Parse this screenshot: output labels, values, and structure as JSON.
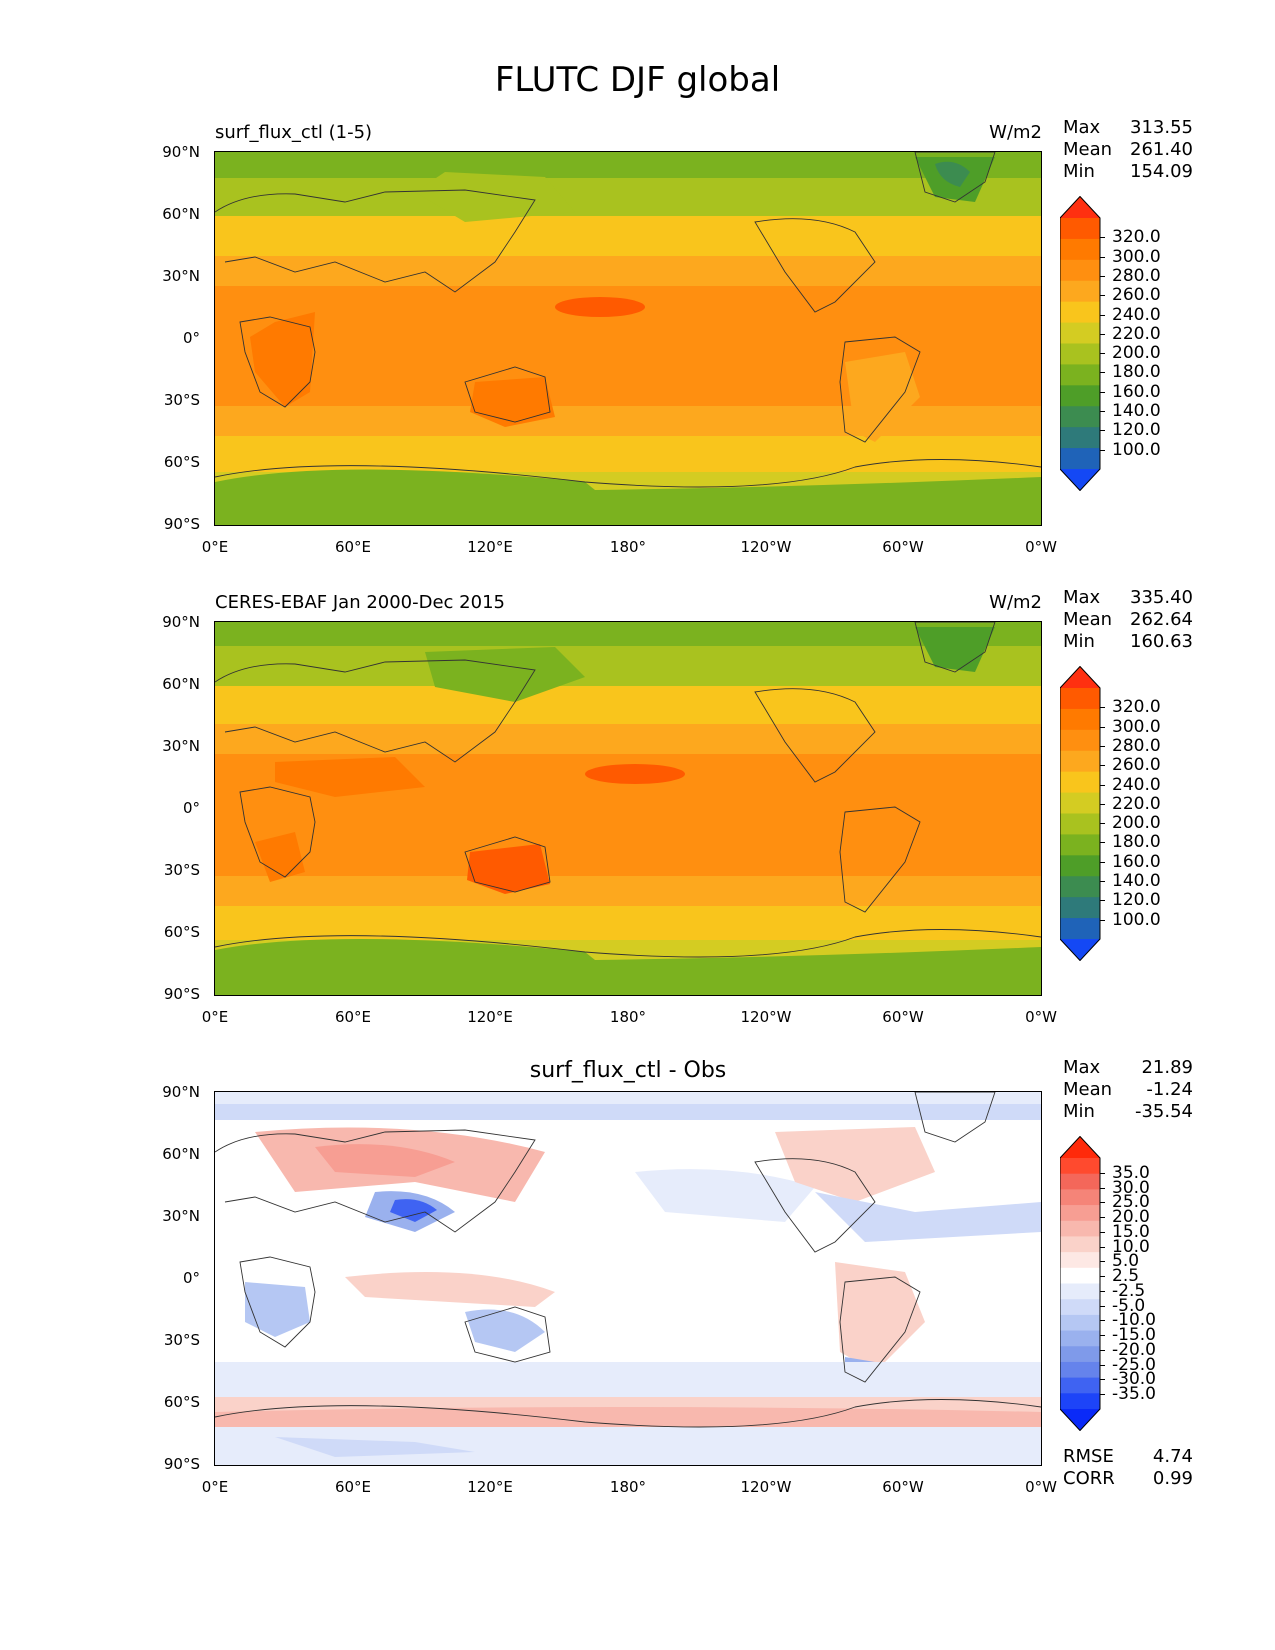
{
  "title": "FLUTC DJF global",
  "axes": {
    "lat_ticks": [
      "90°N",
      "60°N",
      "30°N",
      "0°",
      "30°S",
      "60°S",
      "90°S"
    ],
    "lon_ticks": [
      "0°E",
      "60°E",
      "120°E",
      "180°",
      "120°W",
      "60°W",
      "0°W"
    ]
  },
  "panels": [
    {
      "title_left": "surf_flux_ctl (1-5)",
      "title_right": "W/m2",
      "stats": [
        {
          "k": "Max",
          "v": "313.55"
        },
        {
          "k": "Mean",
          "v": "261.40"
        },
        {
          "k": "Min",
          "v": "154.09"
        }
      ]
    },
    {
      "title_left": "CERES-EBAF Jan 2000-Dec 2015",
      "title_right": "W/m2",
      "stats": [
        {
          "k": "Max",
          "v": "335.40"
        },
        {
          "k": "Mean",
          "v": "262.64"
        },
        {
          "k": "Min",
          "v": "160.63"
        }
      ]
    },
    {
      "title_center": "surf_flux_ctl - Obs",
      "stats": [
        {
          "k": "Max",
          "v": "21.89"
        },
        {
          "k": "Mean",
          "v": "-1.24"
        },
        {
          "k": "Min",
          "v": "-35.54"
        }
      ],
      "footer_stats": [
        {
          "k": "RMSE",
          "v": "4.74"
        },
        {
          "k": "CORR",
          "v": "0.99"
        }
      ]
    }
  ],
  "colorbars": {
    "absolute": {
      "labels": [
        "320.0",
        "300.0",
        "280.0",
        "260.0",
        "240.0",
        "220.0",
        "200.0",
        "180.0",
        "160.0",
        "140.0",
        "120.0",
        "100.0"
      ],
      "colors": [
        "#ff3010",
        "#ff5a00",
        "#ff7a00",
        "#ff8f10",
        "#fda81e",
        "#f9c51c",
        "#d4cc22",
        "#a9c21f",
        "#7bb21f",
        "#4e9e28",
        "#3c8c50",
        "#2e7a7a",
        "#1f63b8",
        "#1448f5"
      ]
    },
    "difference": {
      "labels": [
        "35.0",
        "30.0",
        "25.0",
        "20.0",
        "15.0",
        "10.0",
        "5.0",
        "2.5",
        "-2.5",
        "-5.0",
        "-10.0",
        "-15.0",
        "-20.0",
        "-25.0",
        "-30.0",
        "-35.0"
      ],
      "colors": [
        "#ff2a0a",
        "#ff4a2e",
        "#f4675a",
        "#f58478",
        "#f79e93",
        "#f8b8ae",
        "#fad2c9",
        "#fde8e4",
        "#ffffff",
        "#e6ecfb",
        "#cfdaf8",
        "#b5c7f3",
        "#9ab1ee",
        "#7f9aea",
        "#6583ec",
        "#3f63f2",
        "#1d44f8",
        "#0a2af8"
      ]
    }
  },
  "chart_data": [
    {
      "type": "heatmap",
      "title": "surf_flux_ctl (1-5)",
      "units": "W/m2",
      "xlabel": "",
      "ylabel": "",
      "x_range": [
        "0°E",
        "0°W"
      ],
      "y_range": [
        "90°S",
        "90°N"
      ],
      "levels": [
        100,
        120,
        140,
        160,
        180,
        200,
        220,
        240,
        260,
        280,
        300,
        320
      ],
      "max": 313.55,
      "mean": 261.4,
      "min": 154.09
    },
    {
      "type": "heatmap",
      "title": "CERES-EBAF Jan 2000-Dec 2015",
      "units": "W/m2",
      "xlabel": "",
      "ylabel": "",
      "x_range": [
        "0°E",
        "0°W"
      ],
      "y_range": [
        "90°S",
        "90°N"
      ],
      "levels": [
        100,
        120,
        140,
        160,
        180,
        200,
        220,
        240,
        260,
        280,
        300,
        320
      ],
      "max": 335.4,
      "mean": 262.64,
      "min": 160.63
    },
    {
      "type": "heatmap",
      "title": "surf_flux_ctl - Obs",
      "xlabel": "",
      "ylabel": "",
      "x_range": [
        "0°E",
        "0°W"
      ],
      "y_range": [
        "90°S",
        "90°N"
      ],
      "levels": [
        -35,
        -30,
        -25,
        -20,
        -15,
        -10,
        -5,
        -2.5,
        2.5,
        5,
        10,
        15,
        20,
        25,
        30,
        35
      ],
      "max": 21.89,
      "mean": -1.24,
      "min": -35.54,
      "rmse": 4.74,
      "corr": 0.99
    }
  ]
}
